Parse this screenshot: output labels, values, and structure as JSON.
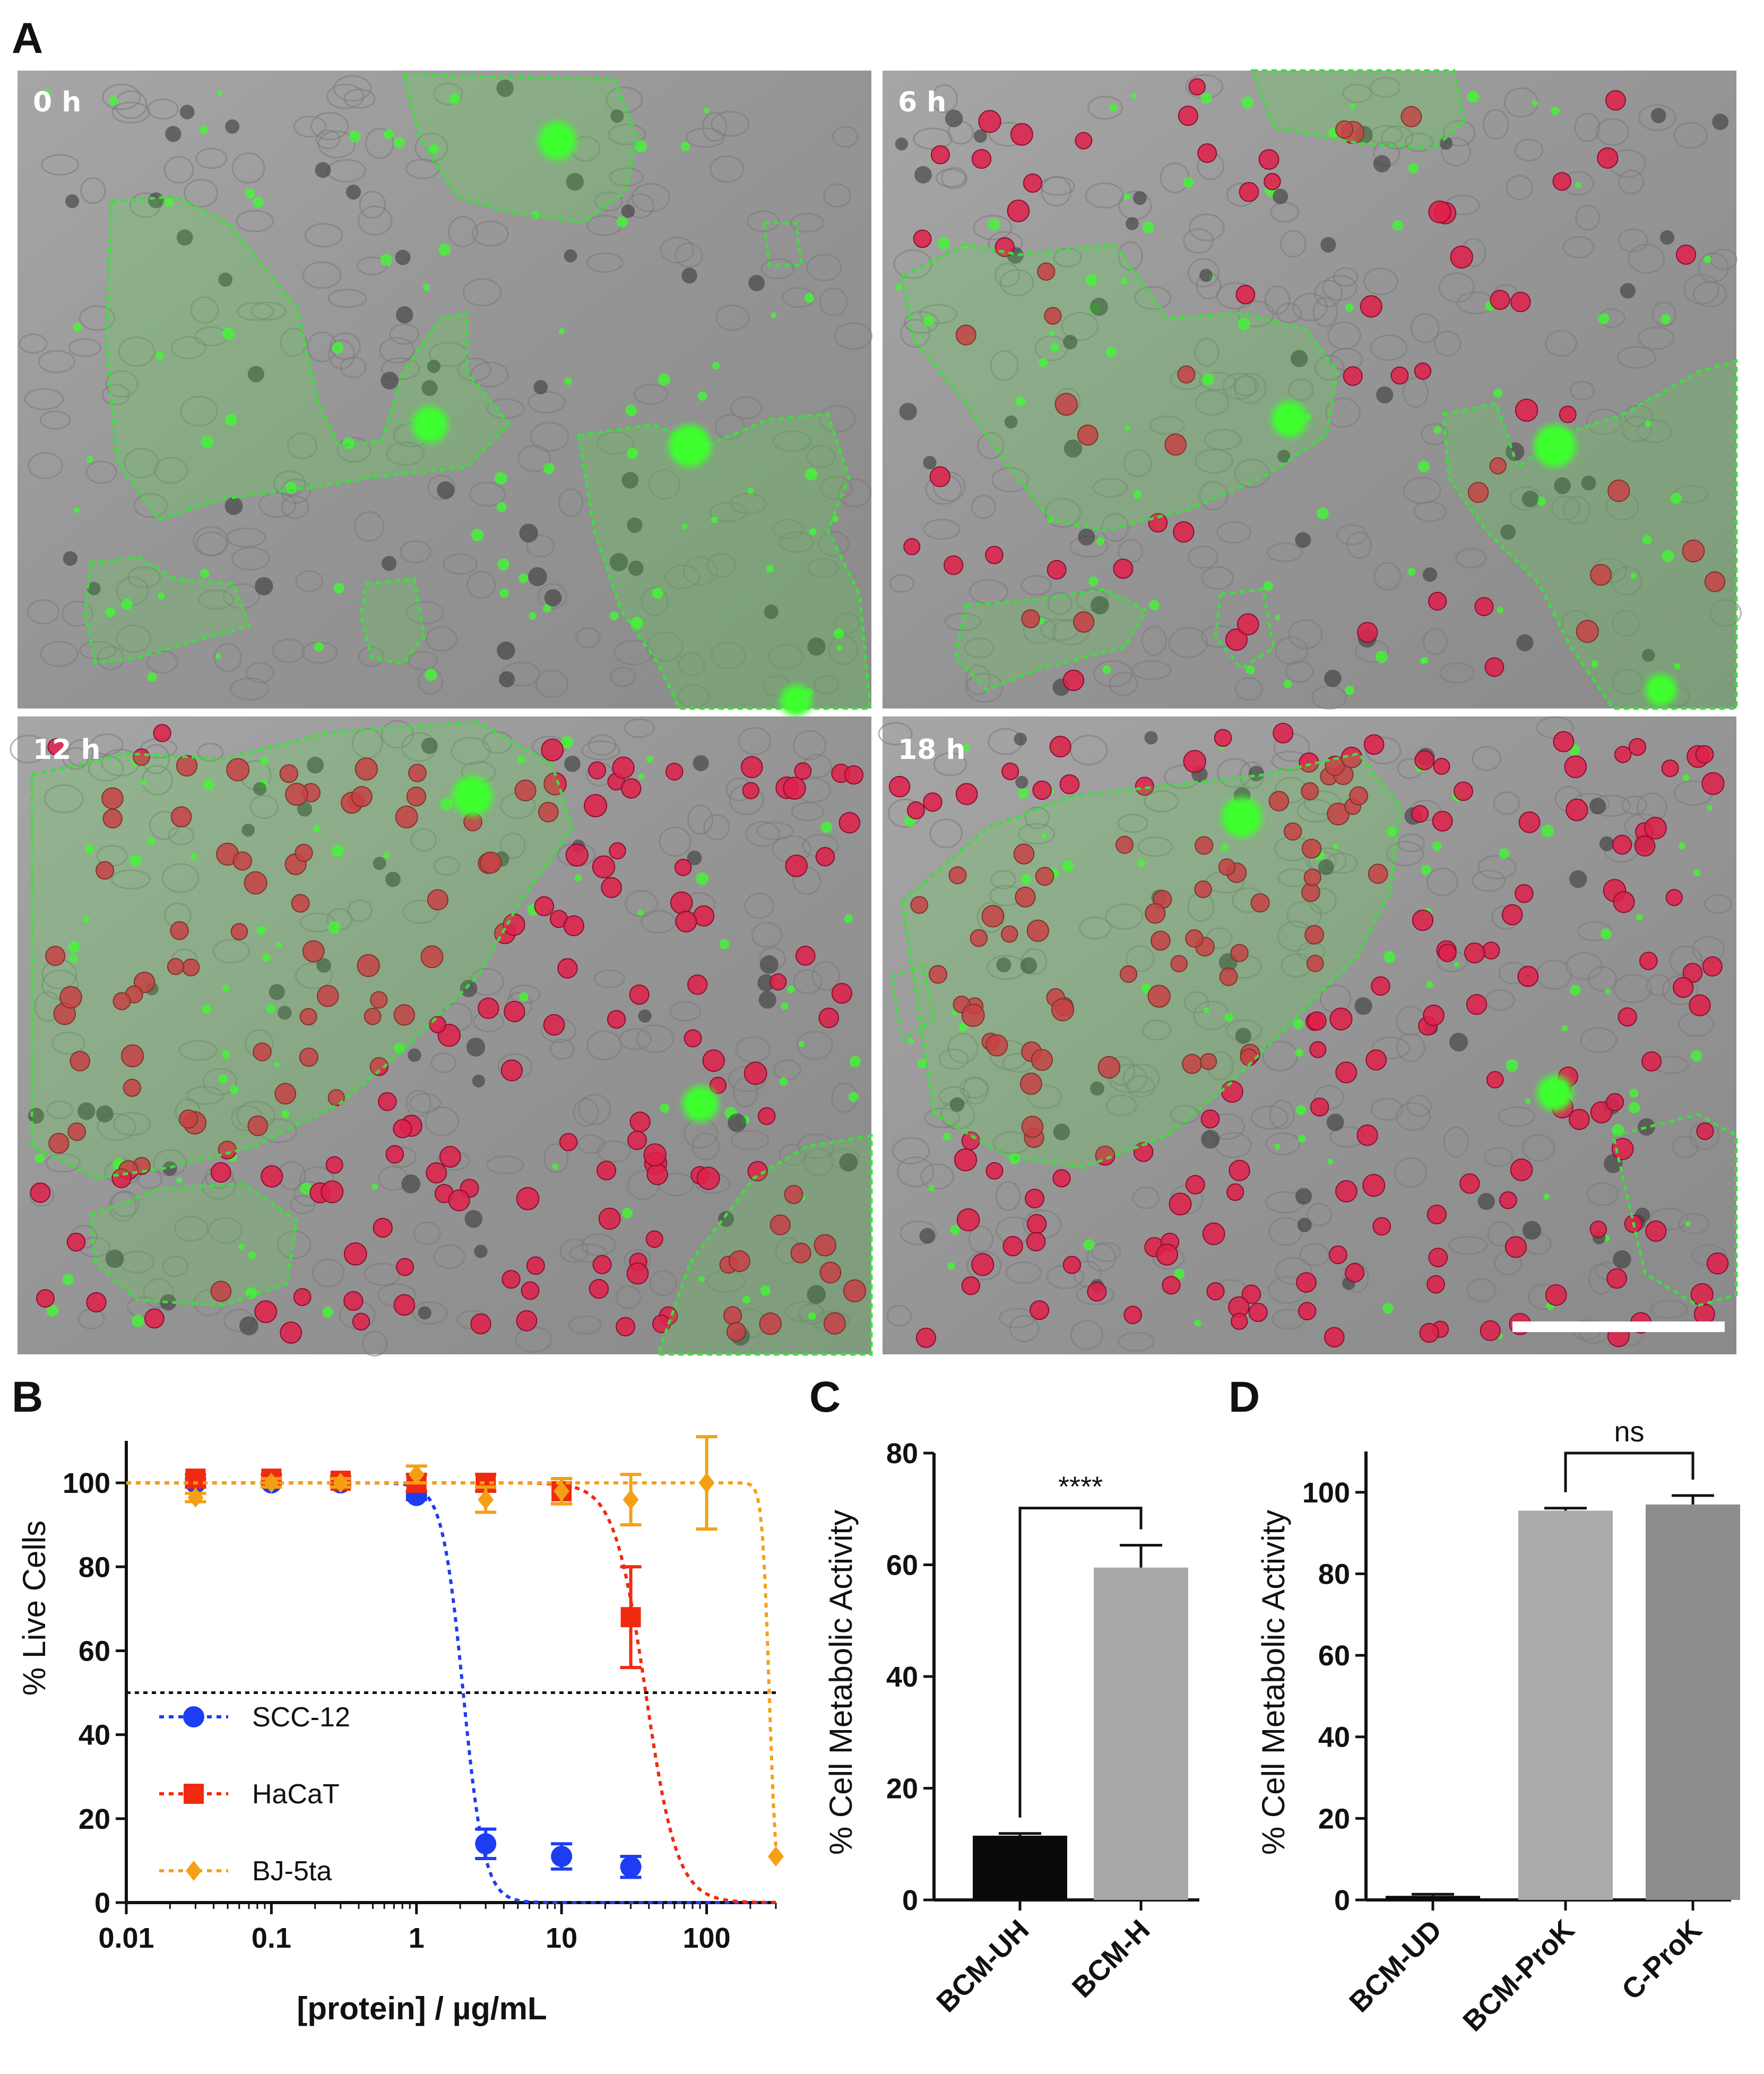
{
  "panel_a": {
    "letter": "A",
    "micrographs": [
      {
        "time_label": "0 h"
      },
      {
        "time_label": "6 h"
      },
      {
        "time_label": "12 h"
      },
      {
        "time_label": "18 h"
      }
    ]
  },
  "colors": {
    "micrograph_background": "#9a9a9a",
    "green_fluorescence": "#3cff2e",
    "red_stain": "#e0204a",
    "outline": "#3ce03c",
    "scc12": "#1d3df2",
    "hacat": "#f02a10",
    "bj5ta": "#f5a014",
    "bar_uh": "#0a0a0a",
    "bar_h": "#a8a8a8",
    "bar_ud": "#0a0a0a",
    "bar_prok": "#ababab",
    "bar_cprok": "#8c8c8c"
  },
  "chart_data": [
    {
      "panel": "B",
      "type": "scatter",
      "xlabel": "[protein] / µg/mL",
      "ylabel": "% Live Cells",
      "x_scale": "log",
      "xlim": [
        0.01,
        300
      ],
      "ylim": [
        0,
        110
      ],
      "x_ticks": [
        0.01,
        0.1,
        1,
        10,
        100
      ],
      "x_tick_labels": [
        "0.01",
        "0.1",
        "1",
        "10",
        "100"
      ],
      "y_ticks": [
        0,
        20,
        40,
        60,
        80,
        100
      ],
      "y_tick_labels": [
        "0",
        "20",
        "40",
        "60",
        "80",
        "100"
      ],
      "reference_line_y": 50,
      "legend_position": "bottom-left",
      "series": [
        {
          "name": "SCC-12",
          "marker": "circle",
          "x": [
            0.03,
            0.1,
            0.3,
            1,
            3,
            10,
            30
          ],
          "y": [
            100,
            100,
            100,
            97,
            14,
            11,
            8.5
          ],
          "err": [
            1,
            1,
            1,
            1,
            3.5,
            3,
            2.5
          ],
          "ec50": 2.1,
          "hill": 6
        },
        {
          "name": "HaCaT",
          "marker": "square",
          "x": [
            0.03,
            0.1,
            0.3,
            1,
            3,
            10,
            30
          ],
          "y": [
            101,
            101,
            100.5,
            100,
            100,
            98,
            68
          ],
          "err": [
            1,
            1,
            1,
            2,
            2,
            3,
            12
          ],
          "ec50": 38,
          "hill": 4
        },
        {
          "name": "BJ-5ta",
          "marker": "diamond",
          "x": [
            0.03,
            0.1,
            0.3,
            1,
            3,
            10,
            30,
            100,
            300
          ],
          "y": [
            96.5,
            100,
            100,
            102,
            96,
            98,
            96,
            100,
            11
          ],
          "err": [
            1,
            1,
            1,
            2,
            3,
            3,
            6,
            11,
            0
          ],
          "ec50": 270,
          "hill": 18
        }
      ]
    },
    {
      "panel": "C",
      "type": "bar",
      "ylabel": "% Cell Metabolic Activity",
      "categories": [
        "BCM-UH",
        "BCM-H"
      ],
      "values": [
        11.5,
        59.5
      ],
      "errors": [
        0.4,
        4
      ],
      "ylim": [
        0,
        80
      ],
      "y_ticks": [
        0,
        20,
        40,
        60,
        80
      ],
      "y_tick_labels": [
        "0",
        "20",
        "40",
        "60",
        "80"
      ],
      "significance": {
        "between": [
          "BCM-UH",
          "BCM-H"
        ],
        "label": "****"
      }
    },
    {
      "panel": "D",
      "type": "bar",
      "ylabel": "% Cell Metabolic Activity",
      "categories": [
        "BCM-UD",
        "BCM-ProK",
        "C-ProK"
      ],
      "values": [
        1,
        95.5,
        97
      ],
      "errors": [
        0.4,
        0.6,
        2.2
      ],
      "ylim": [
        0,
        110
      ],
      "y_ticks": [
        0,
        20,
        40,
        60,
        80,
        100
      ],
      "y_tick_labels": [
        "0",
        "20",
        "40",
        "60",
        "80",
        "100"
      ],
      "significance": {
        "between": [
          "BCM-ProK",
          "C-ProK"
        ],
        "label": "ns"
      }
    }
  ]
}
